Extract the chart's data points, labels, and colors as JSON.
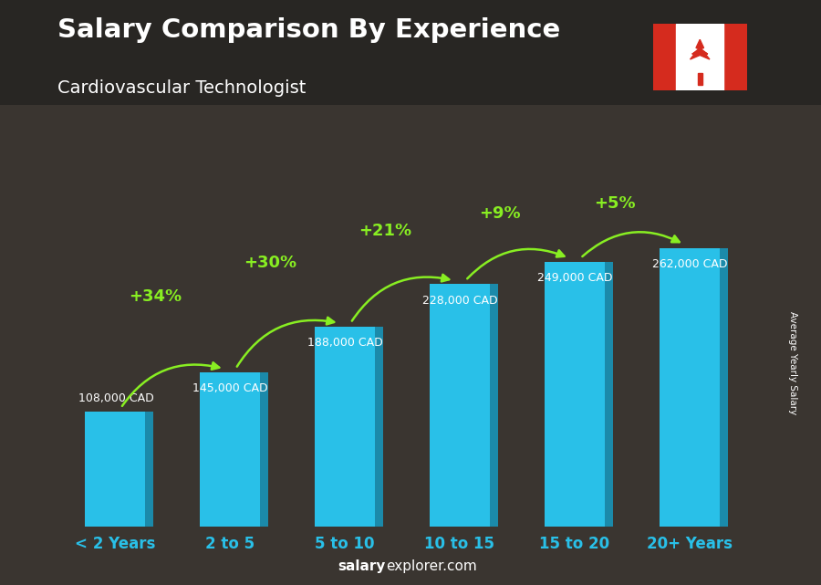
{
  "title": "Salary Comparison By Experience",
  "subtitle": "Cardiovascular Technologist",
  "categories": [
    "< 2 Years",
    "2 to 5",
    "5 to 10",
    "10 to 15",
    "15 to 20",
    "20+ Years"
  ],
  "values": [
    108000,
    145000,
    188000,
    228000,
    249000,
    262000
  ],
  "salary_labels": [
    "108,000 CAD",
    "145,000 CAD",
    "188,000 CAD",
    "228,000 CAD",
    "249,000 CAD",
    "262,000 CAD"
  ],
  "pct_labels": [
    "+34%",
    "+30%",
    "+21%",
    "+9%",
    "+5%"
  ],
  "bar_color_main": "#29c0e8",
  "bar_color_right": "#1b8aaa",
  "bar_color_top": "#6dddf5",
  "bg_dark": "#3a3530",
  "bg_overlay": "#2a2520",
  "title_color": "#ffffff",
  "subtitle_color": "#ffffff",
  "salary_label_color": "#ffffff",
  "pct_color": "#88ee22",
  "arrow_color": "#88ee22",
  "xtick_color": "#29c0e8",
  "ylabel_text": "Average Yearly Salary",
  "footer_salary": "salary",
  "footer_explorer": "explorer.com",
  "ylim_max": 330000,
  "bar_width": 0.52,
  "figsize": [
    9.0,
    6.41
  ],
  "dpi": 100
}
